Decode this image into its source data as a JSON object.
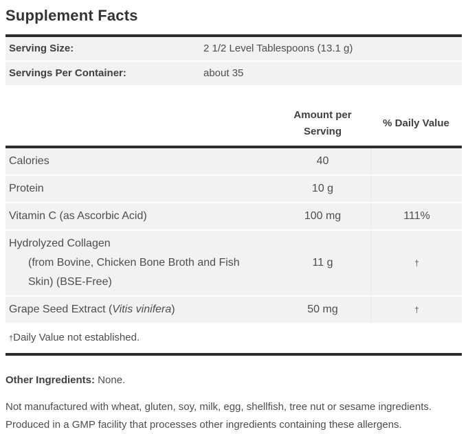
{
  "title": "Supplement Facts",
  "serving_info": {
    "rows": [
      {
        "label": "Serving Size:",
        "value": "2 1/2 Level Tablespoons (13.1 g)"
      },
      {
        "label": "Servings Per Container:",
        "value": "about 35"
      }
    ]
  },
  "nutrition_table": {
    "headers": {
      "amount": "Amount per Serving",
      "daily_value": "% Daily Value"
    },
    "rows": [
      {
        "name": "Calories",
        "amount": "40",
        "daily_value": ""
      },
      {
        "name": "Protein",
        "amount": "10 g",
        "daily_value": ""
      },
      {
        "name": "Vitamin C (as Ascorbic Acid)",
        "amount": "100 mg",
        "daily_value": "111%"
      },
      {
        "name": "Hydrolyzed Collagen",
        "sub_lines": [
          "(from Bovine, Chicken Bone Broth and Fish",
          "Skin) (BSE-Free)"
        ],
        "amount": "11 g",
        "daily_value": "†"
      },
      {
        "name_prefix": "Grape Seed Extract (",
        "name_italic": "Vitis vinifera",
        "name_suffix": ")",
        "amount": "50 mg",
        "daily_value": "†"
      }
    ],
    "footnote": {
      "symbol": "†",
      "text": "Daily Value not established."
    }
  },
  "other_ingredients": {
    "label": "Other Ingredients:",
    "value": " None."
  },
  "allergen_statement": "Not manufactured with wheat, gluten, soy, milk, egg, shellfish, tree nut or sesame ingredients. Produced in a GMP facility that processes other ingredients containing these allergens.",
  "colors": {
    "bar": "#2d2d2d",
    "row_background": "#f2f2f2",
    "text": "#4d4d52",
    "bold_text": "#3f3f46"
  }
}
